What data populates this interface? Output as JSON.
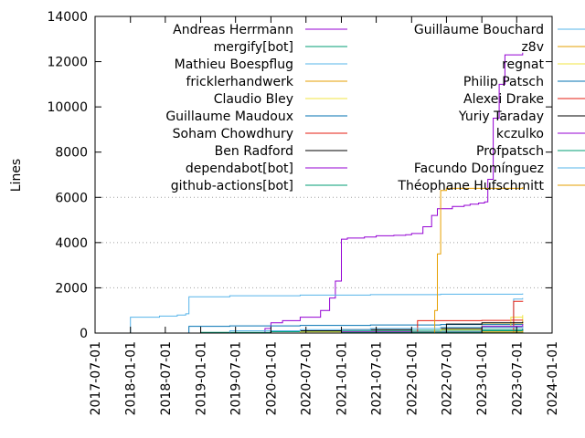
{
  "chart_data": {
    "type": "line",
    "title": "",
    "xlabel": "",
    "ylabel": "Lines",
    "ylim": [
      0,
      14000
    ],
    "xlim": [
      "2017-07-01",
      "2024-01-01"
    ],
    "y_ticks": [
      0,
      2000,
      4000,
      6000,
      8000,
      10000,
      12000,
      14000
    ],
    "x_ticks": [
      "2017-07-01",
      "2018-01-01",
      "2018-07-01",
      "2019-01-01",
      "2019-07-01",
      "2020-01-01",
      "2020-07-01",
      "2021-01-01",
      "2021-07-01",
      "2022-01-01",
      "2022-07-01",
      "2023-01-01",
      "2023-07-01",
      "2024-01-01"
    ],
    "grid": "horizontal dotted at 2000, 4000, 6000",
    "legend_placement": "top (two columns, inside plot)",
    "series": [
      {
        "name": "Andreas Herrmann",
        "color": "#9400d3",
        "x": [
          "2019-06-15",
          "2019-12-01",
          "2020-01-01",
          "2020-03-01",
          "2020-06-01",
          "2020-09-15",
          "2020-11-01",
          "2020-12-01",
          "2021-01-01",
          "2021-02-01",
          "2021-05-01",
          "2021-07-01",
          "2021-10-01",
          "2021-12-01",
          "2022-01-01",
          "2022-03-01",
          "2022-04-15",
          "2022-05-15",
          "2022-08-01",
          "2022-10-01",
          "2022-11-01",
          "2022-12-15",
          "2023-01-15",
          "2023-02-01",
          "2023-03-01",
          "2023-04-01",
          "2023-05-01",
          "2023-08-01"
        ],
        "values": [
          0,
          200,
          450,
          550,
          700,
          1000,
          1550,
          2300,
          4150,
          4200,
          4250,
          4300,
          4320,
          4350,
          4400,
          4700,
          5200,
          5500,
          5600,
          5650,
          5700,
          5750,
          5800,
          6800,
          9500,
          11000,
          12300,
          12400
        ]
      },
      {
        "name": "mergify[bot]",
        "color": "#009e73",
        "x": [
          "2018-03-01",
          "2019-01-01",
          "2020-01-01",
          "2021-01-01",
          "2022-01-01",
          "2023-01-01",
          "2023-08-01"
        ],
        "values": [
          0,
          30,
          60,
          90,
          120,
          150,
          170
        ]
      },
      {
        "name": "Mathieu Boespflug",
        "color": "#56b4e9",
        "x": [
          "2017-12-15",
          "2018-01-01",
          "2018-06-01",
          "2018-09-01",
          "2018-10-15",
          "2018-11-01",
          "2019-06-01",
          "2020-06-01",
          "2021-06-01",
          "2022-06-01",
          "2023-08-01"
        ],
        "values": [
          0,
          700,
          750,
          800,
          850,
          1600,
          1650,
          1680,
          1700,
          1720,
          1750
        ]
      },
      {
        "name": "fricklerhandwerk",
        "color": "#e69f00",
        "x": [
          "2022-03-01",
          "2022-08-01",
          "2023-01-01",
          "2023-08-01"
        ],
        "values": [
          0,
          20,
          40,
          60
        ]
      },
      {
        "name": "Claudio Bley",
        "color": "#f0e442",
        "x": [
          "2019-01-01",
          "2020-06-01",
          "2022-06-01",
          "2023-01-01",
          "2023-08-01"
        ],
        "values": [
          0,
          50,
          150,
          400,
          700
        ]
      },
      {
        "name": "Guillaume Maudoux",
        "color": "#0072b2",
        "x": [
          "2018-10-01",
          "2018-11-01",
          "2019-06-01",
          "2020-06-01",
          "2021-06-01",
          "2022-06-01",
          "2023-08-01"
        ],
        "values": [
          0,
          300,
          320,
          340,
          360,
          380,
          400
        ]
      },
      {
        "name": "Soham Chowdhury",
        "color": "#e51e10",
        "x": [
          "2022-01-15",
          "2022-02-01",
          "2023-01-01",
          "2023-06-01",
          "2023-08-01"
        ],
        "values": [
          0,
          550,
          560,
          570,
          580
        ]
      },
      {
        "name": "Ben Radford",
        "color": "#000000",
        "x": [
          "2019-01-01",
          "2020-01-01",
          "2021-01-01",
          "2022-01-01",
          "2023-01-01",
          "2023-08-01"
        ],
        "values": [
          0,
          100,
          150,
          200,
          250,
          300
        ]
      },
      {
        "name": "dependabot[bot]",
        "color": "#9400d3",
        "x": [
          "2019-06-01",
          "2021-01-01",
          "2023-01-01",
          "2023-08-01"
        ],
        "values": [
          0,
          50,
          100,
          150
        ]
      },
      {
        "name": "github-actions[bot]",
        "color": "#009e73",
        "x": [
          "2020-01-01",
          "2021-01-01",
          "2022-01-01",
          "2023-08-01"
        ],
        "values": [
          0,
          20,
          40,
          60
        ]
      },
      {
        "name": "Guillaume Bouchard",
        "color": "#56b4e9",
        "x": [
          "2023-06-01",
          "2023-06-15",
          "2023-08-01"
        ],
        "values": [
          0,
          1500,
          1550
        ]
      },
      {
        "name": "z8v",
        "color": "#e69f00",
        "x": [
          "2022-04-20",
          "2022-05-01",
          "2022-05-15",
          "2022-06-01",
          "2022-07-01",
          "2023-08-01"
        ],
        "values": [
          0,
          1000,
          3500,
          6300,
          6400,
          6450
        ]
      },
      {
        "name": "regnat",
        "color": "#f0e442",
        "x": [
          "2022-06-01",
          "2023-01-01",
          "2023-06-01",
          "2023-08-01"
        ],
        "values": [
          0,
          300,
          700,
          800
        ]
      },
      {
        "name": "Philip Patsch",
        "color": "#0072b2",
        "x": [
          "2022-09-01",
          "2023-01-01",
          "2023-08-01"
        ],
        "values": [
          0,
          100,
          200
        ]
      },
      {
        "name": "Alexei Drake",
        "color": "#e51e10",
        "x": [
          "2023-06-01",
          "2023-06-15",
          "2023-08-01"
        ],
        "values": [
          0,
          1400,
          1420
        ]
      },
      {
        "name": "Yuriy Taraday",
        "color": "#000000",
        "x": [
          "2022-06-01",
          "2022-07-01",
          "2023-01-01",
          "2023-08-01"
        ],
        "values": [
          0,
          400,
          450,
          500
        ]
      },
      {
        "name": "kczulko",
        "color": "#9400d3",
        "x": [
          "2022-09-01",
          "2023-01-01",
          "2023-08-01"
        ],
        "values": [
          0,
          300,
          400
        ]
      },
      {
        "name": "Profpatsch",
        "color": "#009e73",
        "x": [
          "2022-10-01",
          "2023-01-01",
          "2023-08-01"
        ],
        "values": [
          0,
          100,
          150
        ]
      },
      {
        "name": "Facundo Domínguez",
        "color": "#56b4e9",
        "x": [
          "2018-06-01",
          "2019-06-01",
          "2020-06-01",
          "2021-06-01",
          "2022-06-01",
          "2023-08-01"
        ],
        "values": [
          0,
          100,
          150,
          200,
          250,
          300
        ]
      },
      {
        "name": "Théophane Hufschmitt",
        "color": "#e69f00",
        "x": [
          "2022-01-01",
          "2023-01-01",
          "2023-08-01"
        ],
        "values": [
          0,
          50,
          100
        ]
      }
    ]
  }
}
